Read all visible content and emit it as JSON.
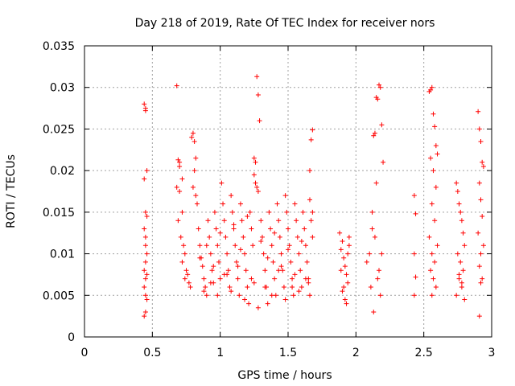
{
  "chart_data": {
    "type": "scatter",
    "title": "Day 218 of 2019, Rate Of TEC Index for receiver nors",
    "xlabel": "GPS time / hours",
    "ylabel": "ROTI / TECUs",
    "xlim": [
      0,
      3
    ],
    "ylim": [
      0,
      0.035
    ],
    "xticks": [
      0,
      0.5,
      1,
      1.5,
      2,
      2.5,
      3
    ],
    "xtick_labels": [
      "0",
      "0.5",
      "1",
      "1.5",
      "2",
      "2.5",
      "3"
    ],
    "yticks": [
      0,
      0.005,
      0.01,
      0.015,
      0.02,
      0.025,
      0.03,
      0.035
    ],
    "ytick_labels": [
      "0",
      "0.005",
      "0.01",
      "0.015",
      "0.02",
      "0.025",
      "0.03",
      "0.035"
    ],
    "grid": true,
    "marker": "+",
    "color": "#ff0000",
    "series": [
      {
        "name": "ROTI",
        "x": [
          0.44,
          0.45,
          0.45,
          0.46,
          0.44,
          0.45,
          0.46,
          0.44,
          0.45,
          0.46,
          0.45,
          0.44,
          0.46,
          0.45,
          0.44,
          0.45,
          0.46,
          0.45,
          0.44,
          0.45,
          0.68,
          0.69,
          0.7,
          0.68,
          0.7,
          0.72,
          0.69,
          0.71,
          0.73,
          0.74,
          0.72,
          0.75,
          0.76,
          0.74,
          0.77,
          0.78,
          0.8,
          0.79,
          0.81,
          0.82,
          0.8,
          0.83,
          0.84,
          0.85,
          0.86,
          0.87,
          0.88,
          0.89,
          0.9,
          0.91,
          0.92,
          0.93,
          0.94,
          0.95,
          0.96,
          0.97,
          0.98,
          0.99,
          1.0,
          1.01,
          1.02,
          1.03,
          1.04,
          1.05,
          1.06,
          1.07,
          1.08,
          1.09,
          1.1,
          1.11,
          1.12,
          1.13,
          1.14,
          1.15,
          1.16,
          1.17,
          1.18,
          1.19,
          1.2,
          1.21,
          1.22,
          1.23,
          1.24,
          1.25,
          1.26,
          1.27,
          1.28,
          1.29,
          1.3,
          1.31,
          1.32,
          1.33,
          1.34,
          1.35,
          1.36,
          1.37,
          1.38,
          1.39,
          1.4,
          1.41,
          1.42,
          1.43,
          1.44,
          1.45,
          1.46,
          1.47,
          1.48,
          1.49,
          1.5,
          1.51,
          1.52,
          1.53,
          1.54,
          1.55,
          1.56,
          1.57,
          1.58,
          1.59,
          1.6,
          1.61,
          1.62,
          1.63,
          1.64,
          1.65,
          1.66,
          1.67,
          1.68,
          1.67,
          1.66,
          1.68,
          0.85,
          0.9,
          0.95,
          1.0,
          1.05,
          1.1,
          1.15,
          1.2,
          1.25,
          1.3,
          1.35,
          1.4,
          1.45,
          1.5,
          1.55,
          1.6,
          1.65,
          0.88,
          0.93,
          0.98,
          1.03,
          1.08,
          1.13,
          1.18,
          1.23,
          1.28,
          1.33,
          1.38,
          1.43,
          1.48,
          1.53,
          1.58,
          1.63,
          0.7,
          0.72,
          0.81,
          0.82,
          1.25,
          1.26,
          1.27,
          1.28,
          1.66,
          1.68,
          1.88,
          1.9,
          1.89,
          1.91,
          1.92,
          1.93,
          1.94,
          1.95,
          1.9,
          1.92,
          1.94,
          1.89,
          1.91,
          1.93,
          1.95,
          2.08,
          2.1,
          2.12,
          2.13,
          2.14,
          2.15,
          2.16,
          2.17,
          2.18,
          2.19,
          2.2,
          2.12,
          2.14,
          2.16,
          2.18,
          2.13,
          2.17,
          2.19,
          2.15,
          2.11,
          2.43,
          2.44,
          2.43,
          2.44,
          2.43,
          2.54,
          2.55,
          2.56,
          2.57,
          2.58,
          2.59,
          2.6,
          2.55,
          2.57,
          2.59,
          2.56,
          2.58,
          2.54,
          2.6,
          2.56,
          2.58,
          2.55,
          2.57,
          2.59,
          2.56,
          2.74,
          2.75,
          2.76,
          2.77,
          2.78,
          2.79,
          2.8,
          2.75,
          2.77,
          2.79,
          2.76,
          2.78,
          2.74,
          2.8,
          2.76,
          2.78,
          2.9,
          2.91,
          2.92,
          2.93,
          2.94,
          2.91,
          2.92,
          2.93,
          2.9,
          2.94,
          2.92,
          2.91,
          2.93,
          2.92,
          2.91
        ],
        "y": [
          0.028,
          0.0275,
          0.0272,
          0.02,
          0.019,
          0.015,
          0.0145,
          0.013,
          0.012,
          0.01,
          0.009,
          0.008,
          0.0075,
          0.007,
          0.006,
          0.005,
          0.0045,
          0.003,
          0.0025,
          0.011,
          0.0302,
          0.0213,
          0.021,
          0.018,
          0.0175,
          0.015,
          0.014,
          0.012,
          0.011,
          0.01,
          0.009,
          0.008,
          0.0075,
          0.007,
          0.0065,
          0.006,
          0.0245,
          0.024,
          0.0235,
          0.0215,
          0.018,
          0.016,
          0.013,
          0.011,
          0.0095,
          0.0085,
          0.007,
          0.006,
          0.005,
          0.014,
          0.012,
          0.01,
          0.008,
          0.0065,
          0.015,
          0.013,
          0.011,
          0.009,
          0.007,
          0.0185,
          0.016,
          0.014,
          0.012,
          0.01,
          0.008,
          0.006,
          0.017,
          0.015,
          0.013,
          0.011,
          0.009,
          0.007,
          0.005,
          0.016,
          0.014,
          0.012,
          0.01,
          0.008,
          0.006,
          0.004,
          0.015,
          0.013,
          0.011,
          0.0215,
          0.021,
          0.0313,
          0.0291,
          0.026,
          0.014,
          0.012,
          0.01,
          0.008,
          0.006,
          0.004,
          0.015,
          0.013,
          0.011,
          0.009,
          0.007,
          0.005,
          0.016,
          0.014,
          0.012,
          0.01,
          0.008,
          0.006,
          0.017,
          0.015,
          0.013,
          0.011,
          0.009,
          0.007,
          0.005,
          0.016,
          0.014,
          0.012,
          0.01,
          0.008,
          0.006,
          0.015,
          0.013,
          0.011,
          0.009,
          0.007,
          0.005,
          0.014,
          0.0249,
          0.0237,
          0.02,
          0.012,
          0.0095,
          0.011,
          0.0085,
          0.0125,
          0.0075,
          0.0135,
          0.0105,
          0.0145,
          0.0065,
          0.0115,
          0.0095,
          0.0125,
          0.0085,
          0.0105,
          0.0075,
          0.0115,
          0.0065,
          0.0055,
          0.0065,
          0.005,
          0.0075,
          0.0055,
          0.0085,
          0.0045,
          0.007,
          0.0035,
          0.006,
          0.005,
          0.008,
          0.0045,
          0.006,
          0.0055,
          0.007,
          0.0205,
          0.019,
          0.02,
          0.017,
          0.0195,
          0.0185,
          0.018,
          0.0175,
          0.0165,
          0.015,
          0.0125,
          0.0115,
          0.0105,
          0.0095,
          0.0085,
          0.0075,
          0.0065,
          0.012,
          0.0055,
          0.0045,
          0.01,
          0.008,
          0.006,
          0.004,
          0.011,
          0.009,
          0.01,
          0.013,
          0.0242,
          0.0245,
          0.0288,
          0.0286,
          0.0303,
          0.03,
          0.0255,
          0.021,
          0.015,
          0.012,
          0.007,
          0.005,
          0.003,
          0.008,
          0.01,
          0.0185,
          0.006,
          0.017,
          0.0148,
          0.01,
          0.0072,
          0.005,
          0.0295,
          0.0297,
          0.03,
          0.0268,
          0.0253,
          0.023,
          0.022,
          0.0215,
          0.02,
          0.018,
          0.016,
          0.014,
          0.012,
          0.011,
          0.01,
          0.009,
          0.008,
          0.007,
          0.006,
          0.005,
          0.0185,
          0.0175,
          0.016,
          0.015,
          0.014,
          0.0125,
          0.011,
          0.01,
          0.009,
          0.008,
          0.007,
          0.006,
          0.005,
          0.0045,
          0.0075,
          0.0065,
          0.0271,
          0.025,
          0.0235,
          0.021,
          0.0205,
          0.0185,
          0.0165,
          0.0145,
          0.0125,
          0.011,
          0.01,
          0.0085,
          0.007,
          0.0065,
          0.0025
        ]
      }
    ]
  }
}
